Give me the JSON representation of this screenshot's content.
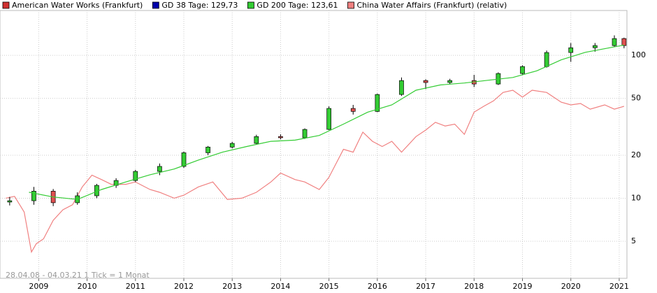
{
  "chart_data": {
    "type": "candlestick",
    "log_scale": true,
    "grid": true,
    "legend_position": "top",
    "legend": [
      {
        "name": "American Water Works (Frankfurt)",
        "color": "#d03030"
      },
      {
        "name": "GD 38 Tage: 129,73",
        "color": "#0000aa"
      },
      {
        "name": "GD 200 Tage: 123,61",
        "color": "#33cc33"
      },
      {
        "name": "China Water Affairs (Frankfurt) (relativ)",
        "color": "#f08080"
      }
    ],
    "annotation": "28.04.08 - 04.03.21   1 Tick = 1 Monat",
    "xlim": [
      2008.2,
      2021.16
    ],
    "xticks": [
      2009,
      2010,
      2011,
      2012,
      2013,
      2014,
      2015,
      2016,
      2017,
      2018,
      2019,
      2020,
      2021
    ],
    "ylim": [
      2.75,
      206
    ],
    "yticks": [
      5,
      10,
      20,
      50,
      100
    ],
    "up_color": "#33cc33",
    "down_color": "#e05050",
    "candles": {
      "x": [
        2008.4,
        2008.9,
        2009.3,
        2009.8,
        2010.2,
        2010.6,
        2011.0,
        2011.5,
        2012.0,
        2012.5,
        2013.0,
        2013.5,
        2014.0,
        2014.5,
        2015.0,
        2015.5,
        2016.0,
        2016.5,
        2017.0,
        2017.5,
        2018.0,
        2018.5,
        2019.0,
        2019.5,
        2020.0,
        2020.5,
        2020.9,
        2021.1
      ],
      "open": [
        9.4,
        9.6,
        11.2,
        9.3,
        10.4,
        12.3,
        13.3,
        15.4,
        16.7,
        20.8,
        22.8,
        24.2,
        27.0,
        26.5,
        30.3,
        42.5,
        40.5,
        53.2,
        66.6,
        64.5,
        66.6,
        63.0,
        74.6,
        83.5,
        104.6,
        113,
        117,
        131
      ],
      "high": [
        10.2,
        12.0,
        11.6,
        11.0,
        12.6,
        13.8,
        15.8,
        17.5,
        21.2,
        23.2,
        24.8,
        27.8,
        28.0,
        30.8,
        44.0,
        45.0,
        54.0,
        70.0,
        68.0,
        68.5,
        73.0,
        76.0,
        85.0,
        108.0,
        122,
        122,
        138,
        133
      ],
      "low": [
        8.9,
        9.0,
        8.8,
        9.0,
        10.0,
        11.8,
        13.0,
        14.5,
        16.3,
        20.0,
        22.3,
        23.8,
        25.8,
        26.0,
        30.0,
        38.5,
        40.0,
        52.0,
        58.0,
        63.0,
        60.0,
        62.0,
        73.0,
        82.0,
        90.0,
        106,
        115,
        112
      ],
      "close": [
        9.6,
        11.2,
        9.3,
        10.4,
        12.3,
        13.3,
        15.4,
        16.7,
        20.8,
        22.8,
        24.2,
        27.0,
        26.5,
        30.3,
        42.5,
        40.5,
        53.2,
        66.6,
        64.5,
        66.6,
        63.0,
        74.6,
        83.5,
        104.6,
        113,
        117,
        131,
        117
      ]
    },
    "lines": [
      {
        "color": "#33cc33",
        "x": [
          2008.8,
          2009.3,
          2009.8,
          2010.3,
          2010.8,
          2011.3,
          2011.8,
          2012.3,
          2012.8,
          2013.3,
          2013.8,
          2014.3,
          2014.8,
          2015.3,
          2015.8,
          2016.3,
          2016.8,
          2017.3,
          2017.8,
          2018.3,
          2018.8,
          2019.3,
          2019.8,
          2020.3,
          2020.8,
          2021.1
        ],
        "values": [
          11,
          10.2,
          9.8,
          11.5,
          13,
          14.6,
          16,
          18.5,
          21,
          23,
          25,
          25.5,
          27.5,
          33,
          40,
          45,
          57,
          62,
          64,
          67,
          70,
          78,
          93,
          105,
          113,
          118
        ]
      },
      {
        "color": "#f08080",
        "x": [
          2008.32,
          2008.5,
          2008.7,
          2008.85,
          2008.95,
          2009.1,
          2009.3,
          2009.5,
          2009.7,
          2009.9,
          2010.1,
          2010.3,
          2010.5,
          2010.8,
          2011.0,
          2011.3,
          2011.5,
          2011.8,
          2012.0,
          2012.3,
          2012.6,
          2012.9,
          2013.2,
          2013.5,
          2013.8,
          2014.0,
          2014.3,
          2014.5,
          2014.8,
          2015.0,
          2015.3,
          2015.5,
          2015.7,
          2015.9,
          2016.1,
          2016.3,
          2016.5,
          2016.8,
          2017.0,
          2017.2,
          2017.4,
          2017.6,
          2017.8,
          2018.0,
          2018.2,
          2018.4,
          2018.6,
          2018.8,
          2019.0,
          2019.2,
          2019.5,
          2019.8,
          2020.0,
          2020.2,
          2020.4,
          2020.7,
          2020.9,
          2021.1
        ],
        "values": [
          10,
          10.3,
          8,
          4.2,
          4.8,
          5.2,
          7,
          8.3,
          9,
          12,
          14.5,
          13.5,
          12.5,
          12.5,
          13,
          11.5,
          11,
          10,
          10.5,
          12,
          13,
          9.8,
          10,
          11,
          13,
          15,
          13.5,
          13,
          11.5,
          14,
          22,
          21,
          29,
          25,
          23,
          25,
          21,
          27,
          30,
          34,
          32,
          33,
          28,
          40,
          44,
          48,
          55,
          57,
          51,
          57,
          55,
          47,
          45,
          46,
          42,
          45,
          42,
          44
        ]
      }
    ]
  }
}
